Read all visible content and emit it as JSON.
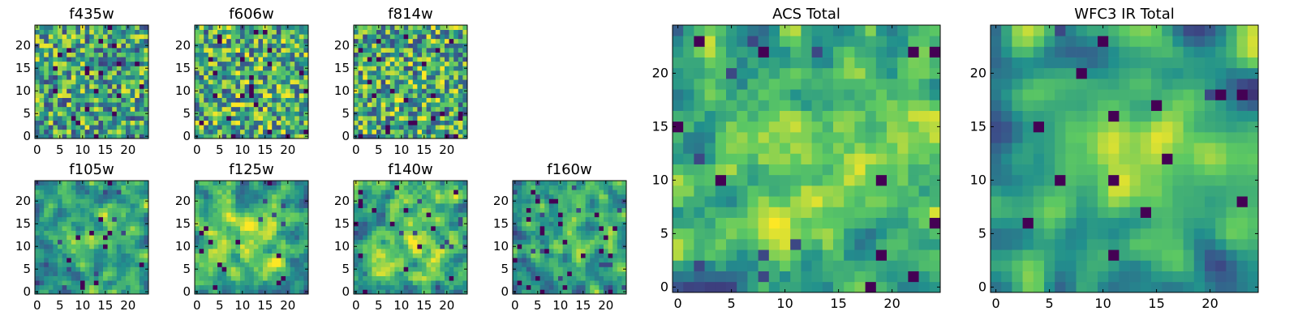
{
  "figure": {
    "colormap": [
      "#440154",
      "#3b528b",
      "#21908d",
      "#5dc962",
      "#fde725"
    ],
    "background": "#ffffff"
  },
  "chart_data": [
    {
      "type": "heatmap",
      "title": "f435w",
      "xticks": [
        "0",
        "5",
        "10",
        "15",
        "20"
      ],
      "yticks": [
        "0",
        "5",
        "10",
        "15",
        "20"
      ],
      "xlim": [
        -0.5,
        24.5
      ],
      "ylim": [
        -0.5,
        24.5
      ],
      "grid_size": 25,
      "seed": 11,
      "smooth": 0,
      "yellow_bias": 0.02,
      "center_boost": 0.0,
      "dark_frac": 0.05
    },
    {
      "type": "heatmap",
      "title": "f606w",
      "xticks": [
        "0",
        "5",
        "10",
        "15",
        "20"
      ],
      "yticks": [
        "0",
        "5",
        "10",
        "15",
        "20"
      ],
      "xlim": [
        -0.5,
        24.5
      ],
      "ylim": [
        -0.5,
        24.5
      ],
      "grid_size": 25,
      "seed": 23,
      "smooth": 0,
      "yellow_bias": 0.06,
      "center_boost": 0.05,
      "dark_frac": 0.05
    },
    {
      "type": "heatmap",
      "title": "f814w",
      "xticks": [
        "0",
        "5",
        "10",
        "15",
        "20"
      ],
      "yticks": [
        "0",
        "5",
        "10",
        "15",
        "20"
      ],
      "xlim": [
        -0.5,
        24.5
      ],
      "ylim": [
        -0.5,
        24.5
      ],
      "grid_size": 25,
      "seed": 37,
      "smooth": 0,
      "yellow_bias": 0.04,
      "center_boost": 0.05,
      "dark_frac": 0.05
    },
    {
      "type": "heatmap",
      "title": "f105w",
      "xticks": [
        "0",
        "5",
        "10",
        "15",
        "20"
      ],
      "yticks": [
        "0",
        "5",
        "10",
        "15",
        "20"
      ],
      "xlim": [
        -0.5,
        24.5
      ],
      "ylim": [
        -0.5,
        24.5
      ],
      "grid_size": 25,
      "seed": 41,
      "smooth": 1,
      "yellow_bias": 0.0,
      "center_boost": 0.25,
      "dark_frac": 0.03
    },
    {
      "type": "heatmap",
      "title": "f125w",
      "xticks": [
        "0",
        "5",
        "10",
        "15",
        "20"
      ],
      "yticks": [
        "0",
        "5",
        "10",
        "15",
        "20"
      ],
      "xlim": [
        -0.5,
        24.5
      ],
      "ylim": [
        -0.5,
        24.5
      ],
      "grid_size": 25,
      "seed": 53,
      "smooth": 1,
      "yellow_bias": 0.04,
      "center_boost": 0.25,
      "dark_frac": 0.03
    },
    {
      "type": "heatmap",
      "title": "f140w",
      "xticks": [
        "0",
        "5",
        "10",
        "15",
        "20"
      ],
      "yticks": [
        "0",
        "5",
        "10",
        "15",
        "20"
      ],
      "xlim": [
        -0.5,
        24.5
      ],
      "ylim": [
        -0.5,
        24.5
      ],
      "grid_size": 25,
      "seed": 67,
      "smooth": 1,
      "yellow_bias": 0.04,
      "center_boost": 0.2,
      "dark_frac": 0.04
    },
    {
      "type": "heatmap",
      "title": "f160w",
      "xticks": [
        "0",
        "5",
        "10",
        "15",
        "20"
      ],
      "yticks": [
        "0",
        "5",
        "10",
        "15",
        "20"
      ],
      "xlim": [
        -0.5,
        24.5
      ],
      "ylim": [
        -0.5,
        24.5
      ],
      "grid_size": 25,
      "seed": 79,
      "smooth": 1,
      "yellow_bias": -0.04,
      "center_boost": 0.2,
      "dark_frac": 0.06
    },
    {
      "type": "heatmap",
      "title": "ACS Total",
      "xticks": [
        "0",
        "5",
        "10",
        "15",
        "20"
      ],
      "yticks": [
        "0",
        "5",
        "10",
        "15",
        "20"
      ],
      "xlim": [
        -0.5,
        24.5
      ],
      "ylim": [
        -0.5,
        24.5
      ],
      "grid_size": 25,
      "seed": 97,
      "smooth": 1,
      "yellow_bias": 0.02,
      "center_boost": 0.12,
      "dark_frac": 0.02
    },
    {
      "type": "heatmap",
      "title": "WFC3 IR Total",
      "xticks": [
        "0",
        "5",
        "10",
        "15",
        "20"
      ],
      "yticks": [
        "0",
        "5",
        "10",
        "15",
        "20"
      ],
      "xlim": [
        -0.5,
        24.5
      ],
      "ylim": [
        -0.5,
        24.5
      ],
      "grid_size": 25,
      "seed": 113,
      "smooth": 2,
      "yellow_bias": 0.0,
      "center_boost": 0.3,
      "dark_frac": 0.02
    }
  ]
}
